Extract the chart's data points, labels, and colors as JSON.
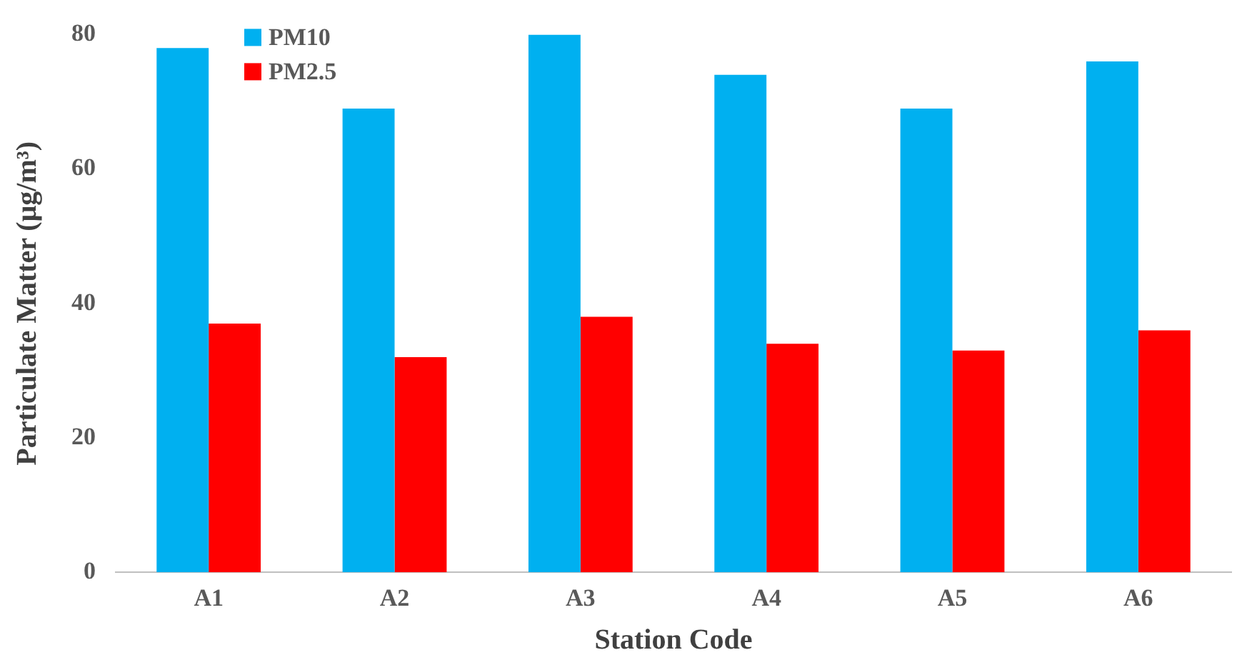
{
  "chart_data": {
    "type": "bar",
    "xlabel": "Station Code",
    "ylabel": "Particulate Matter (μg/m³)",
    "categories": [
      "A1",
      "A2",
      "A3",
      "A4",
      "A5",
      "A6"
    ],
    "series": [
      {
        "name": "PM10",
        "color": "#00b0f0",
        "values": [
          78,
          69,
          80,
          74,
          69,
          76
        ]
      },
      {
        "name": "PM2.5",
        "color": "#ff0000",
        "values": [
          37,
          32,
          38,
          34,
          33,
          36
        ]
      }
    ],
    "ylim": [
      0,
      80
    ],
    "yticks": [
      0,
      20,
      40,
      60,
      80
    ],
    "grid": false,
    "legend": "top left"
  }
}
